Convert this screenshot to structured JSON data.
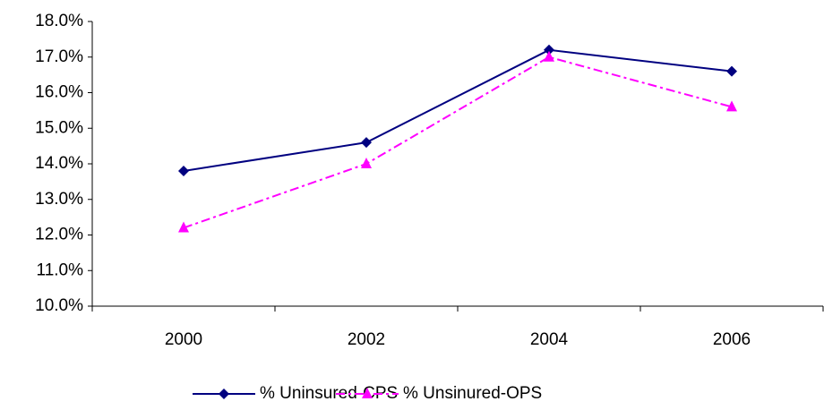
{
  "chart_data": {
    "type": "line",
    "categories": [
      "2000",
      "2002",
      "2004",
      "2006"
    ],
    "series": [
      {
        "name": "% Uninsured-CPS",
        "color": "#000080",
        "marker": "diamond",
        "dash": "solid",
        "values": [
          13.8,
          14.6,
          17.2,
          16.6
        ]
      },
      {
        "name": "% Unsinured-OPS",
        "color": "#ff00ff",
        "marker": "triangle",
        "dash": "dashdot",
        "values": [
          12.2,
          14.0,
          17.0,
          15.6
        ]
      }
    ],
    "ylim": [
      10,
      18
    ],
    "yticks": [
      {
        "value": 10,
        "label": "10.0%"
      },
      {
        "value": 11,
        "label": "11.0%"
      },
      {
        "value": 12,
        "label": "12.0%"
      },
      {
        "value": 13,
        "label": "13.0%"
      },
      {
        "value": 14,
        "label": "14.0%"
      },
      {
        "value": 15,
        "label": "15.0%"
      },
      {
        "value": 16,
        "label": "16.0%"
      },
      {
        "value": 17,
        "label": "17.0%"
      },
      {
        "value": 18,
        "label": "18.0%"
      }
    ],
    "grid": false,
    "legend": "bottom"
  }
}
